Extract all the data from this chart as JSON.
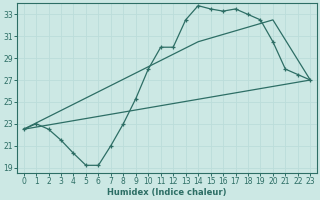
{
  "xlabel": "Humidex (Indice chaleur)",
  "bg_color": "#cce8e4",
  "grid_color": "#bbddda",
  "line_color": "#2d6e65",
  "xlim": [
    -0.5,
    23.5
  ],
  "ylim": [
    18.5,
    34.0
  ],
  "xticks": [
    0,
    1,
    2,
    3,
    4,
    5,
    6,
    7,
    8,
    9,
    10,
    11,
    12,
    13,
    14,
    15,
    16,
    17,
    18,
    19,
    20,
    21,
    22,
    23
  ],
  "yticks": [
    19,
    21,
    23,
    25,
    27,
    29,
    31,
    33
  ],
  "line1_x": [
    0,
    1,
    2,
    3,
    4,
    5,
    6,
    7,
    8,
    9,
    10,
    11,
    12,
    13,
    14,
    15,
    16,
    17,
    18,
    19,
    20,
    21,
    22,
    23
  ],
  "line1_y": [
    22.5,
    23.0,
    22.5,
    21.5,
    20.3,
    19.2,
    19.2,
    21.0,
    23.0,
    25.3,
    28.0,
    30.0,
    30.0,
    32.5,
    33.8,
    33.5,
    33.3,
    33.5,
    33.0,
    32.5,
    30.5,
    28.0,
    27.5,
    27.0
  ],
  "line2_x": [
    0,
    23
  ],
  "line2_y": [
    22.5,
    27.0
  ],
  "line3_x": [
    0,
    14,
    20,
    23
  ],
  "line3_y": [
    22.5,
    30.5,
    32.5,
    27.0
  ]
}
